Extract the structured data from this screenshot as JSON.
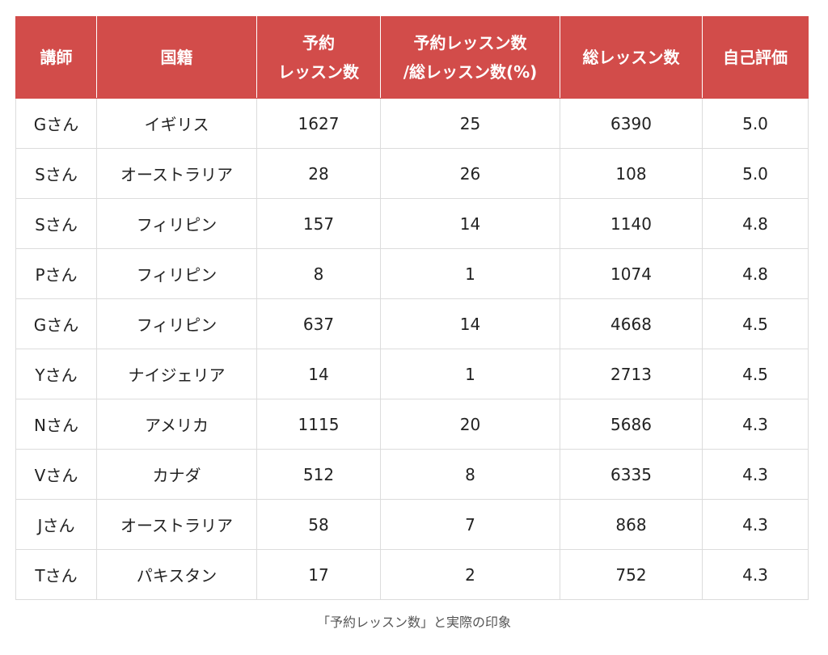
{
  "header": {
    "col1": [
      "講師"
    ],
    "col2": [
      "国籍"
    ],
    "col3": [
      "予約",
      "レッスン数"
    ],
    "col4": [
      "予約レッスン数",
      "/総レッスン数(%)"
    ],
    "col5": [
      "総レッスン数"
    ],
    "col6": [
      "自己評価"
    ]
  },
  "rows": [
    {
      "teacher": "Gさん",
      "country": "イギリス",
      "booked": "1627",
      "ratio": "25",
      "total": "6390",
      "rating": "5.0"
    },
    {
      "teacher": "Sさん",
      "country": "オーストラリア",
      "booked": "28",
      "ratio": "26",
      "total": "108",
      "rating": "5.0"
    },
    {
      "teacher": "Sさん",
      "country": "フィリピン",
      "booked": "157",
      "ratio": "14",
      "total": "1140",
      "rating": "4.8"
    },
    {
      "teacher": "Pさん",
      "country": "フィリピン",
      "booked": "8",
      "ratio": "1",
      "total": "1074",
      "rating": "4.8"
    },
    {
      "teacher": "Gさん",
      "country": "フィリピン",
      "booked": "637",
      "ratio": "14",
      "total": "4668",
      "rating": "4.5"
    },
    {
      "teacher": "Yさん",
      "country": "ナイジェリア",
      "booked": "14",
      "ratio": "1",
      "total": "2713",
      "rating": "4.5"
    },
    {
      "teacher": "Nさん",
      "country": "アメリカ",
      "booked": "1115",
      "ratio": "20",
      "total": "5686",
      "rating": "4.3"
    },
    {
      "teacher": "Vさん",
      "country": "カナダ",
      "booked": "512",
      "ratio": "8",
      "total": "6335",
      "rating": "4.3"
    },
    {
      "teacher": "Jさん",
      "country": "オーストラリア",
      "booked": "58",
      "ratio": "7",
      "total": "868",
      "rating": "4.3"
    },
    {
      "teacher": "Tさん",
      "country": "パキスタン",
      "booked": "17",
      "ratio": "2",
      "total": "752",
      "rating": "4.3"
    }
  ],
  "caption": "「予約レッスン数」と実際の印象",
  "colors": {
    "header_bg": "#d24c4a",
    "header_text": "#ffffff",
    "grid": "#dcdcdc"
  }
}
